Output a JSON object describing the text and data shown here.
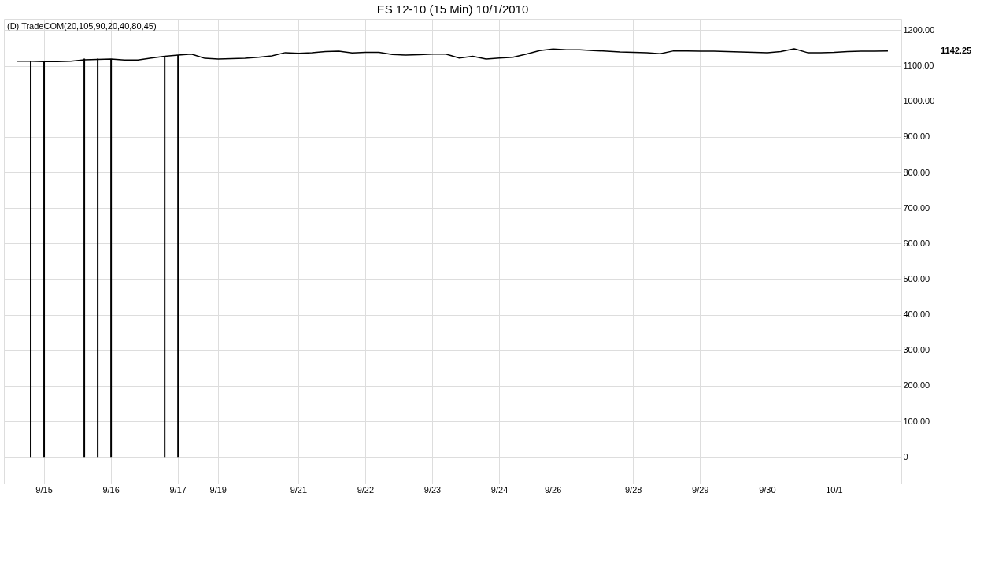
{
  "chart_data": {
    "type": "line",
    "title": "ES 12-10 (15 Min)  10/1/2010",
    "categories": [
      null,
      null,
      "9/15",
      null,
      null,
      null,
      null,
      "9/16",
      null,
      null,
      null,
      null,
      "9/17",
      null,
      null,
      "9/19",
      null,
      null,
      null,
      null,
      null,
      "9/21",
      null,
      null,
      null,
      null,
      "9/22",
      null,
      null,
      null,
      null,
      "9/23",
      null,
      null,
      null,
      null,
      "9/24",
      null,
      null,
      null,
      "9/26",
      null,
      null,
      null,
      null,
      null,
      "9/28",
      null,
      null,
      null,
      null,
      "9/29",
      null,
      null,
      null,
      null,
      "9/30",
      null,
      null,
      null,
      null,
      "10/1",
      null,
      null,
      null,
      null
    ],
    "ylim": [
      -75,
      1232
    ],
    "yticks": [
      0,
      {
        "value": 100,
        "label": "100.00"
      },
      {
        "value": 200,
        "label": "200.00"
      },
      {
        "value": 300,
        "label": "300.00"
      },
      {
        "value": 400,
        "label": "400.00"
      },
      {
        "value": 500,
        "label": "500.00"
      },
      {
        "value": 600,
        "label": "600.00"
      },
      {
        "value": 700,
        "label": "700.00"
      },
      {
        "value": 800,
        "label": "800.00"
      },
      {
        "value": 900,
        "label": "900.00"
      },
      {
        "value": 1000,
        "label": "1000.00"
      },
      {
        "value": 1100,
        "label": "1100.00"
      },
      {
        "value": 1200,
        "label": "1200.00"
      }
    ],
    "grid": true,
    "series": [
      {
        "color": "#000000",
        "line_style": "solid",
        "values": [
          1113,
          1113,
          1112,
          1112,
          1113,
          1117,
          1118,
          1119,
          1116,
          1116,
          1122,
          1127,
          1130,
          1133,
          1121,
          1119,
          1120,
          1121,
          1124,
          1128,
          1137,
          1135,
          1137,
          1140,
          1141,
          1136,
          1138,
          1138,
          1132,
          1130,
          1131,
          1133,
          1133,
          1122,
          1127,
          1119,
          1122,
          1124,
          1133,
          1143,
          1147,
          1145,
          1145,
          1143,
          1141,
          1139,
          1138,
          1137,
          1134,
          1142,
          1142,
          1141,
          1141,
          1140,
          1139,
          1138,
          1137,
          1140,
          1148,
          1137,
          1137,
          1138,
          1140,
          1141,
          1141,
          1142
        ]
      },
      {
        "type": "bar",
        "color": "#000000",
        "values": [
          null,
          1113,
          1113,
          null,
          null,
          1120,
          1120,
          1119,
          null,
          null,
          null,
          1128,
          1130,
          null,
          null,
          null,
          null,
          null,
          null,
          null,
          null,
          null,
          null,
          null,
          null,
          null,
          null,
          null,
          null,
          null,
          null,
          null,
          null,
          null,
          null,
          null,
          null,
          null,
          null,
          null,
          null,
          null,
          null,
          null,
          null,
          null,
          null,
          null,
          null,
          null,
          null,
          null,
          null,
          null,
          null,
          null,
          null,
          null,
          null,
          null,
          null,
          null,
          null,
          null,
          null,
          null
        ]
      }
    ],
    "annotations": [
      "(D) TradeCOM(20,105,90,20,40,80,45)",
      "1142.25"
    ]
  }
}
